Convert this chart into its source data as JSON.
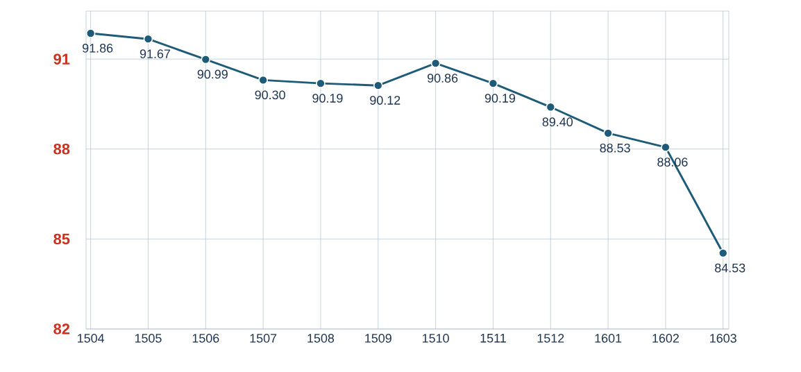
{
  "chart_data": {
    "type": "line",
    "categories": [
      "1504",
      "1505",
      "1506",
      "1507",
      "1508",
      "1509",
      "1510",
      "1511",
      "1512",
      "1601",
      "1602",
      "1603"
    ],
    "values": [
      91.86,
      91.67,
      90.99,
      90.3,
      90.19,
      90.12,
      90.86,
      90.19,
      89.4,
      88.53,
      88.06,
      84.53
    ],
    "value_labels": [
      "91.86",
      "91.67",
      "90.99",
      "90.30",
      "90.19",
      "90.12",
      "90.86",
      "90.19",
      "89.40",
      "88.53",
      "88.06",
      "84.53"
    ],
    "color": "#1d5b78",
    "ylim": [
      82,
      92.6
    ],
    "yticks": [
      82,
      85,
      88,
      91
    ],
    "grid": true,
    "marker": "circle",
    "line_style": "solid"
  }
}
